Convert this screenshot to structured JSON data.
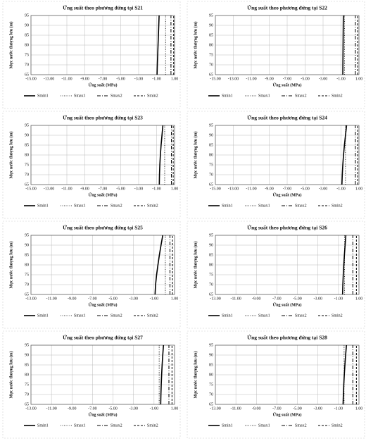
{
  "chart_data": [
    {
      "type": "line",
      "title": "Ứng suất theo phương đứng tại S21",
      "xlabel": "Ứng suất (MPa)",
      "ylabel": "Mực nước thượng lưu (m)",
      "y": [
        65,
        70,
        75,
        80,
        85,
        90,
        95
      ],
      "xlim": [
        -15,
        1
      ],
      "xticks": [
        {
          "value": -15,
          "label": "-15.00"
        },
        {
          "value": -13,
          "label": "-13.00"
        },
        {
          "value": -11,
          "label": "-11.00"
        },
        {
          "value": -9,
          "label": "-9.00"
        },
        {
          "value": -7,
          "label": "-7.00"
        },
        {
          "value": -5,
          "label": "-5.00"
        },
        {
          "value": -3,
          "label": "-3.00"
        },
        {
          "value": -1,
          "label": "-1.00"
        },
        {
          "value": 1,
          "label": "1.00"
        }
      ],
      "ylim": [
        65,
        95
      ],
      "yticks": [
        65,
        70,
        75,
        80,
        85,
        90,
        95
      ],
      "grid": true,
      "series": [
        {
          "name": "Smin1",
          "color": "#000000",
          "dash": "solid",
          "values": [
            -0.95,
            -0.92,
            -0.88,
            -0.84,
            -0.8,
            -0.76,
            -0.72
          ]
        },
        {
          "name": "Smax1",
          "color": "#000000",
          "dash": "dotted",
          "values": [
            0,
            0,
            0,
            0,
            0,
            0,
            0
          ]
        },
        {
          "name": "Smax2",
          "color": "#000000",
          "dash": "dashdot",
          "values": [
            0.6,
            0.6,
            0.6,
            0.6,
            0.6,
            0.6,
            0.6
          ]
        },
        {
          "name": "Smin2",
          "color": "#000000",
          "dash": "dashed",
          "values": [
            0.9,
            0.9,
            0.9,
            0.9,
            0.9,
            0.9,
            0.9
          ]
        }
      ]
    },
    {
      "type": "line",
      "title": "Ứng suất theo phương đứng tại S22",
      "xlabel": "Ứng suất (MPa)",
      "ylabel": "Mực nước thượng lưu (m)",
      "y": [
        65,
        70,
        75,
        80,
        85,
        90,
        95
      ],
      "xlim": [
        -15,
        1
      ],
      "xticks": [
        {
          "value": -15,
          "label": "-15.00"
        },
        {
          "value": -13,
          "label": "-13.00"
        },
        {
          "value": -11,
          "label": "-11.00"
        },
        {
          "value": -9,
          "label": "-9.00"
        },
        {
          "value": -7,
          "label": "-7.00"
        },
        {
          "value": -5,
          "label": "-5.00"
        },
        {
          "value": -3,
          "label": "-3.00"
        },
        {
          "value": -1,
          "label": "-1.00"
        },
        {
          "value": 1,
          "label": "1.00"
        }
      ],
      "ylim": [
        65,
        95
      ],
      "yticks": [
        65,
        70,
        75,
        80,
        85,
        90,
        95
      ],
      "grid": true,
      "series": [
        {
          "name": "Smin1",
          "color": "#000000",
          "dash": "solid",
          "values": [
            -0.8,
            -0.79,
            -0.78,
            -0.77,
            -0.76,
            -0.75,
            -0.74
          ]
        },
        {
          "name": "Smax1",
          "color": "#000000",
          "dash": "dotted",
          "values": [
            -0.6,
            -0.6,
            -0.6,
            -0.6,
            -0.6,
            -0.6,
            -0.6
          ]
        },
        {
          "name": "Smax2",
          "color": "#000000",
          "dash": "dashdot",
          "values": [
            0.6,
            0.6,
            0.6,
            0.6,
            0.6,
            0.6,
            0.6
          ]
        },
        {
          "name": "Smin2",
          "color": "#000000",
          "dash": "dashed",
          "values": [
            0.85,
            0.85,
            0.85,
            0.85,
            0.85,
            0.85,
            0.85
          ]
        }
      ]
    },
    {
      "type": "line",
      "title": "Ứng suất theo phương đứng tại S23",
      "xlabel": "Ứng suất (MPa)",
      "ylabel": "Mực nước thượng lưu (m)",
      "y": [
        65,
        70,
        75,
        80,
        85,
        90,
        95
      ],
      "xlim": [
        -15,
        1
      ],
      "xticks": [
        {
          "value": -15,
          "label": "-15.00"
        },
        {
          "value": -13,
          "label": "-13.00"
        },
        {
          "value": -11,
          "label": "-11.00"
        },
        {
          "value": -9,
          "label": "-9.00"
        },
        {
          "value": -7,
          "label": "-7.00"
        },
        {
          "value": -5,
          "label": "-5.00"
        },
        {
          "value": -3,
          "label": "-3.00"
        },
        {
          "value": -1,
          "label": "-1.00"
        },
        {
          "value": 1,
          "label": "1.00"
        }
      ],
      "ylim": [
        65,
        95
      ],
      "yticks": [
        65,
        70,
        75,
        80,
        85,
        90,
        95
      ],
      "grid": true,
      "series": [
        {
          "name": "Smin1",
          "color": "#000000",
          "dash": "solid",
          "values": [
            -0.7,
            -0.68,
            -0.64,
            -0.58,
            -0.5,
            -0.4,
            -0.3
          ]
        },
        {
          "name": "Smax1",
          "color": "#000000",
          "dash": "dotted",
          "values": [
            -0.1,
            -0.1,
            -0.1,
            -0.1,
            -0.1,
            -0.1,
            -0.1
          ]
        },
        {
          "name": "Smax2",
          "color": "#000000",
          "dash": "dashdot",
          "values": [
            0.65,
            0.65,
            0.65,
            0.65,
            0.65,
            0.65,
            0.65
          ]
        },
        {
          "name": "Smin2",
          "color": "#000000",
          "dash": "dashed",
          "values": [
            0.85,
            0.85,
            0.85,
            0.85,
            0.85,
            0.85,
            0.85
          ]
        }
      ]
    },
    {
      "type": "line",
      "title": "Ứng suất theo phương đứng tại S24",
      "xlabel": "Ứng suất (MPa)",
      "ylabel": "Mực nước thượng lưu (m)",
      "y": [
        65,
        70,
        75,
        80,
        85,
        90,
        95
      ],
      "xlim": [
        -15,
        1
      ],
      "xticks": [
        {
          "value": -15,
          "label": "-15.00"
        },
        {
          "value": -13,
          "label": "-13.00"
        },
        {
          "value": -11,
          "label": "-11.00"
        },
        {
          "value": -9,
          "label": "-9.00"
        },
        {
          "value": -7,
          "label": "-7.00"
        },
        {
          "value": -5,
          "label": "-5.00"
        },
        {
          "value": -3,
          "label": "-3.00"
        },
        {
          "value": -1,
          "label": "-1.00"
        },
        {
          "value": 1,
          "label": "1.00"
        }
      ],
      "ylim": [
        65,
        95
      ],
      "yticks": [
        65,
        70,
        75,
        80,
        85,
        90,
        95
      ],
      "grid": true,
      "series": [
        {
          "name": "Smin1",
          "color": "#000000",
          "dash": "solid",
          "values": [
            -0.9,
            -0.86,
            -0.8,
            -0.72,
            -0.62,
            -0.5,
            -0.38
          ]
        },
        {
          "name": "Smax1",
          "color": "#000000",
          "dash": "dotted",
          "values": [
            -0.5,
            -0.5,
            -0.5,
            -0.5,
            -0.5,
            -0.5,
            -0.5
          ]
        },
        {
          "name": "Smax2",
          "color": "#000000",
          "dash": "dashdot",
          "values": [
            0.6,
            0.6,
            0.6,
            0.6,
            0.6,
            0.6,
            0.6
          ]
        },
        {
          "name": "Smin2",
          "color": "#000000",
          "dash": "dashed",
          "values": [
            0.85,
            0.85,
            0.85,
            0.85,
            0.85,
            0.85,
            0.85
          ]
        }
      ]
    },
    {
      "type": "line",
      "title": "Ứng suất theo phương đứng tại S25",
      "xlabel": "Ứng suất (MPa)",
      "ylabel": "Mực nước thượng lưu (m)",
      "y": [
        65,
        70,
        75,
        80,
        85,
        90,
        95
      ],
      "xlim": [
        -13,
        1
      ],
      "xticks": [
        {
          "value": -13,
          "label": "-13.00"
        },
        {
          "value": -11,
          "label": "-11.00"
        },
        {
          "value": -9,
          "label": "-9.00"
        },
        {
          "value": -7,
          "label": "-7.00"
        },
        {
          "value": -5,
          "label": "-5.00"
        },
        {
          "value": -3,
          "label": "-3.00"
        },
        {
          "value": -1,
          "label": "-1.00"
        },
        {
          "value": 1,
          "label": "1.00"
        }
      ],
      "ylim": [
        65,
        95
      ],
      "yticks": [
        65,
        70,
        75,
        80,
        85,
        90,
        95
      ],
      "grid": true,
      "series": [
        {
          "name": "Smin1",
          "color": "#000000",
          "dash": "solid",
          "values": [
            -0.9,
            -0.85,
            -0.75,
            -0.62,
            -0.48,
            -0.32,
            -0.15
          ]
        },
        {
          "name": "Smax1",
          "color": "#000000",
          "dash": "dotted",
          "values": [
            0.1,
            0.1,
            0.1,
            0.1,
            0.1,
            0.1,
            0.1
          ]
        },
        {
          "name": "Smax2",
          "color": "#000000",
          "dash": "dashdot",
          "values": [
            0.55,
            0.55,
            0.55,
            0.55,
            0.55,
            0.55,
            0.55
          ]
        },
        {
          "name": "Smin2",
          "color": "#000000",
          "dash": "dashed",
          "values": [
            0.8,
            0.8,
            0.8,
            0.8,
            0.8,
            0.8,
            0.8
          ]
        }
      ]
    },
    {
      "type": "line",
      "title": "Ứng suất theo phương đứng tại S26",
      "xlabel": "Ứng suất (MPa)",
      "ylabel": "Mực nước thượng lưu (m)",
      "y": [
        65,
        70,
        75,
        80,
        85,
        90,
        95
      ],
      "xlim": [
        -13,
        1
      ],
      "xticks": [
        {
          "value": -13,
          "label": "-13.00"
        },
        {
          "value": -11,
          "label": "-11.00"
        },
        {
          "value": -9,
          "label": "-9.00"
        },
        {
          "value": -7,
          "label": "-7.00"
        },
        {
          "value": -5,
          "label": "-5.00"
        },
        {
          "value": -3,
          "label": "-3.00"
        },
        {
          "value": -1,
          "label": "-1.00"
        },
        {
          "value": 1,
          "label": "1.00"
        }
      ],
      "ylim": [
        65,
        95
      ],
      "yticks": [
        65,
        70,
        75,
        80,
        85,
        90,
        95
      ],
      "grid": true,
      "series": [
        {
          "name": "Smin1",
          "color": "#000000",
          "dash": "solid",
          "values": [
            -0.6,
            -0.57,
            -0.53,
            -0.48,
            -0.42,
            -0.35,
            -0.28
          ]
        },
        {
          "name": "Smax1",
          "color": "#000000",
          "dash": "dotted",
          "values": [
            -0.4,
            -0.4,
            -0.4,
            -0.4,
            -0.4,
            -0.4,
            -0.4
          ]
        },
        {
          "name": "Smax2",
          "color": "#000000",
          "dash": "dashdot",
          "values": [
            0.4,
            0.4,
            0.4,
            0.4,
            0.4,
            0.4,
            0.4
          ]
        },
        {
          "name": "Smin2",
          "color": "#000000",
          "dash": "dashed",
          "values": [
            0.75,
            0.75,
            0.75,
            0.75,
            0.75,
            0.75,
            0.75
          ]
        }
      ]
    },
    {
      "type": "line",
      "title": "Ứng suất theo phương đứng tại S27",
      "xlabel": "Ứng suất (MPa)",
      "ylabel": "Mực nước thượng lưu (m)",
      "y": [
        65,
        70,
        75,
        80,
        85,
        90,
        95
      ],
      "xlim": [
        -13,
        1
      ],
      "xticks": [
        {
          "value": -13,
          "label": "-13.00"
        },
        {
          "value": -11,
          "label": "-11.00"
        },
        {
          "value": -9,
          "label": "-9.00"
        },
        {
          "value": -7,
          "label": "-7.00"
        },
        {
          "value": -5,
          "label": "-5.00"
        },
        {
          "value": -3,
          "label": "-3.00"
        },
        {
          "value": -1,
          "label": "-1.00"
        },
        {
          "value": 1,
          "label": "1.00"
        }
      ],
      "ylim": [
        65,
        95
      ],
      "yticks": [
        65,
        70,
        75,
        80,
        85,
        90,
        95
      ],
      "grid": true,
      "series": [
        {
          "name": "Smin1",
          "color": "#000000",
          "dash": "solid",
          "values": [
            -0.35,
            -0.33,
            -0.3,
            -0.26,
            -0.21,
            -0.15,
            -0.08
          ]
        },
        {
          "name": "Smax1",
          "color": "#000000",
          "dash": "dotted",
          "values": [
            -0.5,
            -0.5,
            -0.5,
            -0.5,
            -0.5,
            -0.5,
            -0.5
          ]
        },
        {
          "name": "Smax2",
          "color": "#000000",
          "dash": "dashdot",
          "values": [
            0.45,
            0.45,
            0.45,
            0.45,
            0.45,
            0.45,
            0.45
          ]
        },
        {
          "name": "Smin2",
          "color": "#000000",
          "dash": "dashed",
          "values": [
            0.75,
            0.75,
            0.75,
            0.75,
            0.75,
            0.75,
            0.75
          ]
        }
      ]
    },
    {
      "type": "line",
      "title": "Ứng suất theo phương đứng tại S28",
      "xlabel": "Ứng suất (MPa)",
      "ylabel": "Mực nước thượng lưu (m)",
      "y": [
        65,
        70,
        75,
        80,
        85,
        90,
        95
      ],
      "xlim": [
        -13,
        1
      ],
      "xticks": [
        {
          "value": -13,
          "label": "-13.00"
        },
        {
          "value": -11,
          "label": "-11.00"
        },
        {
          "value": -9,
          "label": "-9.00"
        },
        {
          "value": -7,
          "label": "-7.00"
        },
        {
          "value": -5,
          "label": "-5.00"
        },
        {
          "value": -3,
          "label": "-3.00"
        },
        {
          "value": -1,
          "label": "-1.00"
        },
        {
          "value": 1,
          "label": "1.00"
        }
      ],
      "ylim": [
        65,
        95
      ],
      "yticks": [
        65,
        70,
        75,
        80,
        85,
        90,
        95
      ],
      "grid": true,
      "series": [
        {
          "name": "Smin1",
          "color": "#000000",
          "dash": "solid",
          "values": [
            -0.55,
            -0.52,
            -0.48,
            -0.43,
            -0.37,
            -0.3,
            -0.22
          ]
        },
        {
          "name": "Smax1",
          "color": "#000000",
          "dash": "dotted",
          "values": [
            -0.45,
            -0.45,
            -0.45,
            -0.45,
            -0.45,
            -0.45,
            -0.45
          ]
        },
        {
          "name": "Smax2",
          "color": "#000000",
          "dash": "dashdot",
          "values": [
            0.4,
            0.4,
            0.4,
            0.4,
            0.4,
            0.4,
            0.4
          ]
        },
        {
          "name": "Smin2",
          "color": "#000000",
          "dash": "dashed",
          "values": [
            0.75,
            0.75,
            0.75,
            0.75,
            0.75,
            0.75,
            0.75
          ]
        }
      ]
    }
  ]
}
